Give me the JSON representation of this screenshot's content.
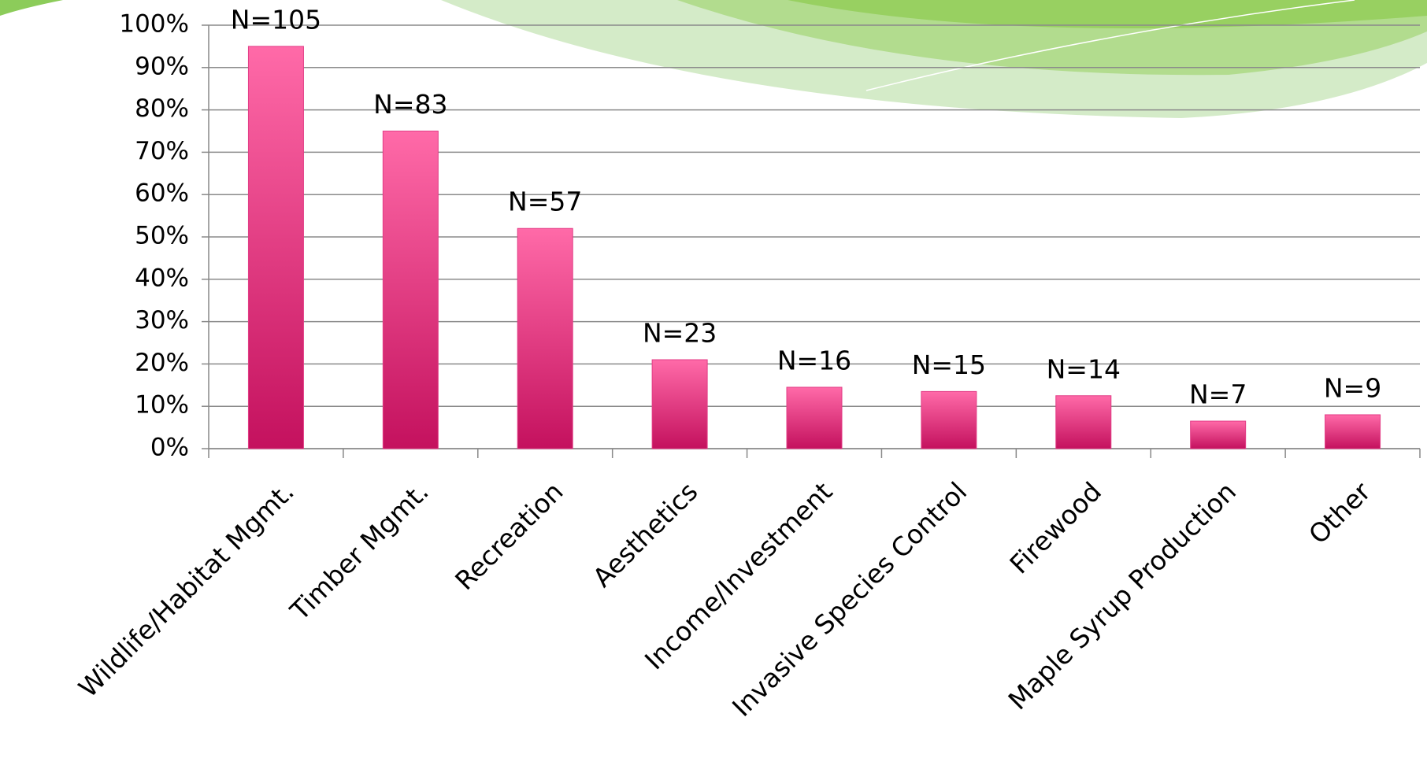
{
  "chart_data": {
    "type": "bar",
    "categories": [
      "Wildlife/Habitat Mgmt.",
      "Timber Mgmt.",
      "Recreation",
      "Aesthetics",
      "Income/Investment",
      "Invasive Species Control",
      "Firewood",
      "Maple Syrup Production",
      "Other"
    ],
    "values": [
      95,
      75,
      52,
      21,
      14.5,
      13.5,
      12.5,
      6.5,
      8
    ],
    "annotations": [
      "N=105",
      "N=83",
      "N=57",
      "N=23",
      "N=16",
      "N=15",
      "N=14",
      "N=7",
      "N=9"
    ],
    "color": "#e23d86",
    "ylim": [
      0,
      100
    ],
    "yticks": [
      {
        "value": 0,
        "label": "0%"
      },
      {
        "value": 10,
        "label": "10%"
      },
      {
        "value": 20,
        "label": "20%"
      },
      {
        "value": 30,
        "label": "30%"
      },
      {
        "value": 40,
        "label": "40%"
      },
      {
        "value": 50,
        "label": "50%"
      },
      {
        "value": 60,
        "label": "60%"
      },
      {
        "value": 70,
        "label": "70%"
      },
      {
        "value": 80,
        "label": "80%"
      },
      {
        "value": 90,
        "label": "90%"
      },
      {
        "value": 100,
        "label": "100%"
      }
    ],
    "grid": true
  }
}
